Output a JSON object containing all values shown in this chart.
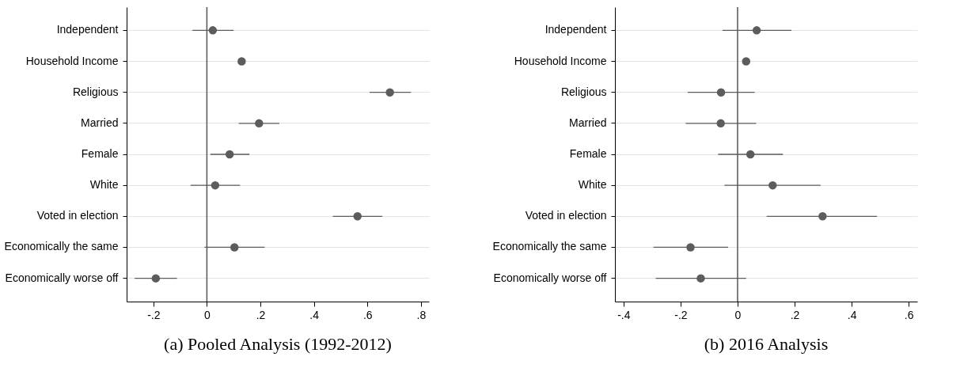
{
  "chart_data": [
    {
      "type": "scatter",
      "title": "(a) Pooled Analysis (1992-2012)",
      "categories": [
        "Independent",
        "Household Income",
        "Religious",
        "Married",
        "Female",
        "White",
        "Voted in election",
        "Economically the same",
        "Economically worse off"
      ],
      "orientation": "horizontal",
      "series": [
        {
          "color": "#5c5c5c",
          "values": [
            0.022,
            0.13,
            0.684,
            0.195,
            0.085,
            0.031,
            0.563,
            0.103,
            -0.191
          ],
          "errors": [
            [
              -0.054,
              0.1
            ],
            [
              0.125,
              0.138
            ],
            [
              0.608,
              0.763
            ],
            [
              0.119,
              0.271
            ],
            [
              0.013,
              0.159
            ],
            [
              -0.061,
              0.124
            ],
            [
              0.471,
              0.656
            ],
            [
              -0.009,
              0.216
            ],
            [
              -0.27,
              -0.112
            ]
          ]
        }
      ],
      "xlim": [
        -0.3,
        0.83
      ],
      "xticks": [
        {
          "value": -0.2,
          "label": "-.2"
        },
        0,
        {
          "value": 0.2,
          "label": ".2"
        },
        {
          "value": 0.4,
          "label": ".4"
        },
        {
          "value": 0.6,
          "label": ".6"
        },
        {
          "value": 0.8,
          "label": ".8"
        }
      ],
      "ref_lines": [
        {
          "axis": "x",
          "value": 0,
          "color": "#555555"
        }
      ],
      "grid": "y",
      "marker": "circle"
    },
    {
      "type": "scatter",
      "title": "(b) 2016 Analysis",
      "categories": [
        "Independent",
        "Household Income",
        "Religious",
        "Married",
        "Female",
        "White",
        "Voted in election",
        "Economically the same",
        "Economically worse off"
      ],
      "orientation": "horizontal",
      "series": [
        {
          "color": "#5c5c5c",
          "values": [
            0.067,
            0.03,
            -0.058,
            -0.059,
            0.045,
            0.123,
            0.298,
            -0.165,
            -0.129
          ],
          "errors": [
            [
              -0.053,
              0.189
            ],
            null,
            [
              -0.175,
              0.06
            ],
            [
              -0.182,
              0.065
            ],
            [
              -0.068,
              0.159
            ],
            [
              -0.046,
              0.291
            ],
            [
              0.102,
              0.489
            ],
            [
              -0.295,
              -0.033
            ],
            [
              -0.287,
              0.03
            ]
          ]
        }
      ],
      "xlim": [
        -0.43,
        0.63
      ],
      "xticks": [
        {
          "value": -0.4,
          "label": "-.4"
        },
        {
          "value": -0.2,
          "label": "-.2"
        },
        0,
        {
          "value": 0.2,
          "label": ".2"
        },
        {
          "value": 0.4,
          "label": ".4"
        },
        {
          "value": 0.6,
          "label": ".6"
        }
      ],
      "ref_lines": [
        {
          "axis": "x",
          "value": 0,
          "color": "#555555"
        }
      ],
      "grid": "y",
      "marker": "circle"
    }
  ]
}
